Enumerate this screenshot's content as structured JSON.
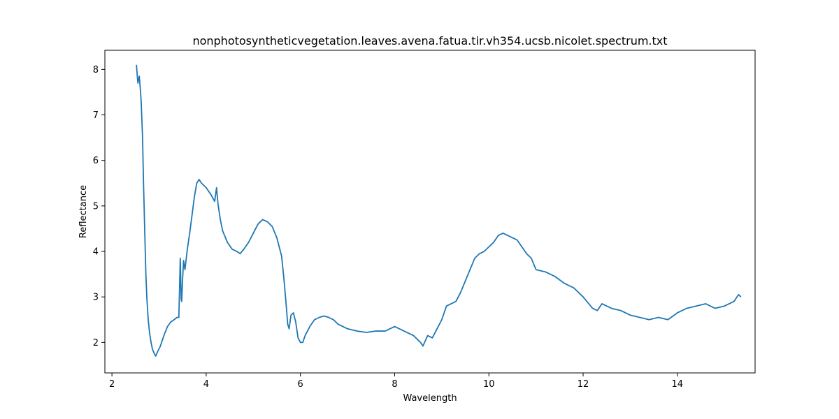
{
  "chart_data": {
    "type": "line",
    "title": "nonphotosyntheticvegetation.leaves.avena.fatua.tir.vh354.ucsb.nicolet.spectrum.txt",
    "xlabel": "Wavelength",
    "ylabel": "Reflectance",
    "xlim": [
      1.85,
      15.65
    ],
    "ylim": [
      1.33,
      8.42
    ],
    "x_ticks": [
      2,
      4,
      6,
      8,
      10,
      12,
      14
    ],
    "y_ticks": [
      2,
      3,
      4,
      5,
      6,
      7,
      8
    ],
    "grid": false,
    "legend": "none",
    "series": [
      {
        "color": "#1f77b4",
        "x": [
          2.52,
          2.55,
          2.58,
          2.6,
          2.62,
          2.65,
          2.67,
          2.7,
          2.72,
          2.74,
          2.77,
          2.8,
          2.83,
          2.86,
          2.9,
          2.93,
          2.97,
          3.02,
          3.07,
          3.12,
          3.18,
          3.25,
          3.32,
          3.38,
          3.42,
          3.45,
          3.47,
          3.48,
          3.5,
          3.52,
          3.55,
          3.6,
          3.65,
          3.7,
          3.75,
          3.8,
          3.85,
          3.9,
          4.0,
          4.1,
          4.18,
          4.22,
          4.25,
          4.3,
          4.35,
          4.45,
          4.55,
          4.65,
          4.72,
          4.8,
          4.9,
          5.0,
          5.1,
          5.2,
          5.3,
          5.4,
          5.5,
          5.6,
          5.65,
          5.7,
          5.73,
          5.76,
          5.8,
          5.85,
          5.9,
          5.95,
          6.0,
          6.05,
          6.1,
          6.2,
          6.3,
          6.4,
          6.5,
          6.6,
          6.7,
          6.8,
          6.9,
          7.0,
          7.2,
          7.4,
          7.6,
          7.8,
          8.0,
          8.2,
          8.4,
          8.55,
          8.6,
          8.7,
          8.8,
          8.9,
          9.0,
          9.1,
          9.2,
          9.3,
          9.4,
          9.5,
          9.6,
          9.7,
          9.8,
          9.9,
          10.0,
          10.1,
          10.2,
          10.3,
          10.4,
          10.5,
          10.6,
          10.7,
          10.8,
          10.9,
          11.0,
          11.2,
          11.4,
          11.6,
          11.8,
          12.0,
          12.2,
          12.3,
          12.4,
          12.5,
          12.6,
          12.8,
          13.0,
          13.2,
          13.4,
          13.6,
          13.8,
          14.0,
          14.2,
          14.4,
          14.6,
          14.8,
          15.0,
          15.2,
          15.3,
          15.35
        ],
        "y": [
          8.1,
          7.7,
          7.85,
          7.6,
          7.3,
          6.5,
          5.5,
          4.3,
          3.5,
          3.0,
          2.5,
          2.2,
          2.0,
          1.85,
          1.75,
          1.7,
          1.8,
          1.9,
          2.05,
          2.2,
          2.35,
          2.45,
          2.5,
          2.55,
          2.55,
          3.85,
          2.95,
          2.9,
          3.4,
          3.8,
          3.6,
          4.05,
          4.4,
          4.8,
          5.2,
          5.5,
          5.58,
          5.5,
          5.4,
          5.25,
          5.1,
          5.4,
          5.05,
          4.7,
          4.45,
          4.2,
          4.05,
          4.0,
          3.95,
          4.05,
          4.2,
          4.4,
          4.6,
          4.7,
          4.65,
          4.55,
          4.3,
          3.9,
          3.4,
          2.8,
          2.4,
          2.3,
          2.6,
          2.65,
          2.45,
          2.1,
          2.0,
          2.0,
          2.15,
          2.35,
          2.5,
          2.55,
          2.58,
          2.55,
          2.5,
          2.4,
          2.35,
          2.3,
          2.25,
          2.22,
          2.25,
          2.25,
          2.35,
          2.25,
          2.15,
          2.0,
          1.92,
          2.15,
          2.1,
          2.3,
          2.5,
          2.8,
          2.85,
          2.9,
          3.1,
          3.35,
          3.6,
          3.85,
          3.95,
          4.0,
          4.1,
          4.2,
          4.35,
          4.4,
          4.35,
          4.3,
          4.25,
          4.1,
          3.95,
          3.85,
          3.6,
          3.55,
          3.45,
          3.3,
          3.2,
          3.0,
          2.75,
          2.7,
          2.85,
          2.8,
          2.75,
          2.7,
          2.6,
          2.55,
          2.5,
          2.55,
          2.5,
          2.65,
          2.75,
          2.8,
          2.85,
          2.75,
          2.8,
          2.9,
          3.05,
          3.0
        ]
      }
    ]
  }
}
